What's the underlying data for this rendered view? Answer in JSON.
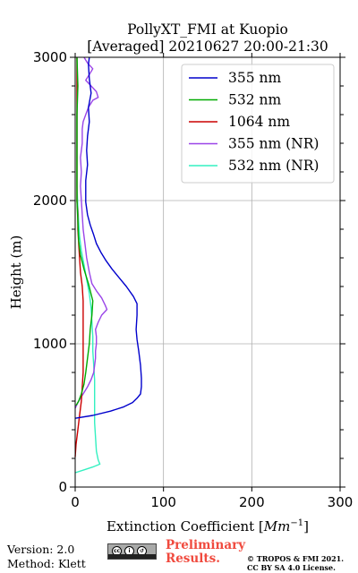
{
  "chart_data": {
    "type": "line",
    "title": "PollyXT_FMI at Kuopio",
    "subtitle": "[Averaged] 20210627 20:00-21:30",
    "xlabel": "Extinction Coefficient [",
    "xlabel_unit": "Mm",
    "xlabel_unit_exp": "−1",
    "xlabel_close": "]",
    "ylabel": "Height (m)",
    "xlim": [
      0,
      300
    ],
    "ylim": [
      0,
      3000
    ],
    "x_ticks": [
      0,
      100,
      200,
      300
    ],
    "y_ticks": [
      0,
      1000,
      2000,
      3000
    ],
    "grid": true,
    "legend_position": "top-right",
    "series": [
      {
        "name": "355 nm",
        "color": "#0000cc",
        "points": [
          [
            0,
            480
          ],
          [
            20,
            500
          ],
          [
            40,
            530
          ],
          [
            55,
            560
          ],
          [
            65,
            590
          ],
          [
            70,
            620
          ],
          [
            74,
            650
          ],
          [
            75,
            700
          ],
          [
            75,
            760
          ],
          [
            74,
            850
          ],
          [
            72,
            950
          ],
          [
            70,
            1030
          ],
          [
            69,
            1100
          ],
          [
            70,
            1200
          ],
          [
            70,
            1280
          ],
          [
            66,
            1330
          ],
          [
            58,
            1400
          ],
          [
            50,
            1460
          ],
          [
            42,
            1520
          ],
          [
            35,
            1580
          ],
          [
            29,
            1640
          ],
          [
            24,
            1700
          ],
          [
            21,
            1760
          ],
          [
            17,
            1830
          ],
          [
            14,
            1900
          ],
          [
            12,
            1990
          ],
          [
            12,
            2080
          ],
          [
            12,
            2140
          ],
          [
            14,
            2250
          ],
          [
            13,
            2350
          ],
          [
            14,
            2450
          ],
          [
            16,
            2550
          ],
          [
            15,
            2650
          ],
          [
            18,
            2750
          ],
          [
            16,
            2850
          ],
          [
            15,
            2950
          ],
          [
            16,
            3000
          ]
        ]
      },
      {
        "name": "532 nm",
        "color": "#00aa00",
        "points": [
          [
            1,
            570
          ],
          [
            4,
            600
          ],
          [
            7,
            650
          ],
          [
            10,
            720
          ],
          [
            12,
            800
          ],
          [
            14,
            900
          ],
          [
            16,
            1000
          ],
          [
            17,
            1100
          ],
          [
            19,
            1200
          ],
          [
            20,
            1300
          ],
          [
            15,
            1420
          ],
          [
            10,
            1520
          ],
          [
            6,
            1620
          ],
          [
            4,
            1720
          ],
          [
            3,
            1850
          ],
          [
            2,
            2000
          ],
          [
            2,
            2200
          ],
          [
            2,
            2400
          ],
          [
            2,
            2600
          ],
          [
            3,
            2800
          ],
          [
            2,
            3000
          ]
        ]
      },
      {
        "name": "1064 nm",
        "color": "#cc0000",
        "points": [
          [
            0,
            210
          ],
          [
            1,
            300
          ],
          [
            3,
            400
          ],
          [
            5,
            500
          ],
          [
            7,
            600
          ],
          [
            8,
            700
          ],
          [
            9,
            800
          ],
          [
            9,
            900
          ],
          [
            9,
            1000
          ],
          [
            9,
            1100
          ],
          [
            9,
            1200
          ],
          [
            9,
            1300
          ],
          [
            8,
            1400
          ],
          [
            6,
            1500
          ],
          [
            5,
            1600
          ],
          [
            4,
            1700
          ],
          [
            3,
            1800
          ],
          [
            3,
            1900
          ],
          [
            2,
            2000
          ],
          [
            2,
            2200
          ],
          [
            2,
            2400
          ],
          [
            2,
            2600
          ],
          [
            2,
            2800
          ],
          [
            2,
            3000
          ]
        ]
      },
      {
        "name": "355 nm (NR)",
        "color": "#9a45e8",
        "points": [
          [
            0,
            550
          ],
          [
            4,
            600
          ],
          [
            9,
            650
          ],
          [
            14,
            700
          ],
          [
            18,
            750
          ],
          [
            21,
            800
          ],
          [
            22,
            850
          ],
          [
            23,
            900
          ],
          [
            23,
            950
          ],
          [
            24,
            1000
          ],
          [
            24,
            1050
          ],
          [
            23,
            1100
          ],
          [
            26,
            1150
          ],
          [
            30,
            1200
          ],
          [
            36,
            1240
          ],
          [
            34,
            1270
          ],
          [
            30,
            1320
          ],
          [
            24,
            1370
          ],
          [
            19,
            1420
          ],
          [
            16,
            1500
          ],
          [
            13,
            1600
          ],
          [
            11,
            1700
          ],
          [
            9,
            1800
          ],
          [
            8,
            1900
          ],
          [
            7,
            2000
          ],
          [
            6,
            2100
          ],
          [
            7,
            2200
          ],
          [
            6,
            2300
          ],
          [
            8,
            2400
          ],
          [
            8,
            2500
          ],
          [
            9,
            2550
          ],
          [
            12,
            2600
          ],
          [
            15,
            2650
          ],
          [
            20,
            2700
          ],
          [
            26,
            2720
          ],
          [
            24,
            2760
          ],
          [
            18,
            2800
          ],
          [
            12,
            2840
          ],
          [
            16,
            2880
          ],
          [
            20,
            2920
          ],
          [
            14,
            2960
          ],
          [
            10,
            3000
          ]
        ]
      },
      {
        "name": "532 nm (NR)",
        "color": "#33f0c0",
        "points": [
          [
            0,
            100
          ],
          [
            10,
            120
          ],
          [
            20,
            140
          ],
          [
            28,
            160
          ],
          [
            26,
            190
          ],
          [
            24,
            250
          ],
          [
            23,
            350
          ],
          [
            22,
            450
          ],
          [
            22,
            550
          ],
          [
            22,
            650
          ],
          [
            22,
            750
          ],
          [
            21,
            850
          ],
          [
            20,
            950
          ],
          [
            20,
            1050
          ],
          [
            19,
            1150
          ],
          [
            18,
            1250
          ],
          [
            16,
            1350
          ],
          [
            13,
            1450
          ],
          [
            10,
            1550
          ],
          [
            7,
            1650
          ],
          [
            5,
            1750
          ],
          [
            4,
            1850
          ],
          [
            3,
            1950
          ],
          [
            2,
            2100
          ],
          [
            2,
            2300
          ],
          [
            2,
            2500
          ],
          [
            2,
            2700
          ],
          [
            2,
            3000
          ]
        ]
      }
    ]
  },
  "footer": {
    "version": "Version: 2.0",
    "method": "Method: Klett",
    "preliminary_line1": "Preliminary",
    "preliminary_line2": "Results.",
    "copyright_line1": "© TROPOS & FMI 2021.",
    "copyright_line2": "CC BY SA 4.0 License.",
    "license_badge": "CC BY SA",
    "license_icon": "creative-commons-icon"
  }
}
